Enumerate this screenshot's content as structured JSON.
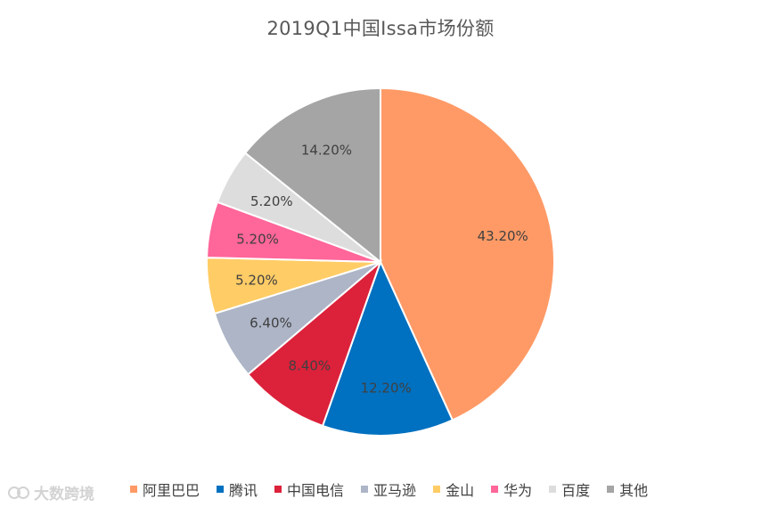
{
  "chart_data": {
    "type": "pie",
    "title": "2019Q1中国Issa市场份额",
    "categories": [
      "阿里巴巴",
      "腾讯",
      "中国电信",
      "亚马逊",
      "金山",
      "华为",
      "百度",
      "其他"
    ],
    "values": [
      43.2,
      12.2,
      8.4,
      6.4,
      5.2,
      5.2,
      5.2,
      14.2
    ],
    "labels": [
      "43.20%",
      "12.20%",
      "8.40%",
      "6.40%",
      "5.20%",
      "5.20%",
      "5.20%",
      "14.20%"
    ],
    "colors": [
      "#FF9A66",
      "#0070C0",
      "#DC213A",
      "#ADB5C7",
      "#FFCC66",
      "#FF6699",
      "#DDDDDD",
      "#A5A5A5"
    ],
    "start_angle": "12 o'clock",
    "direction": "clockwise",
    "legend": "bottom"
  },
  "watermark": {
    "text": "大数跨境",
    "icon": "brand-logo-icon"
  }
}
